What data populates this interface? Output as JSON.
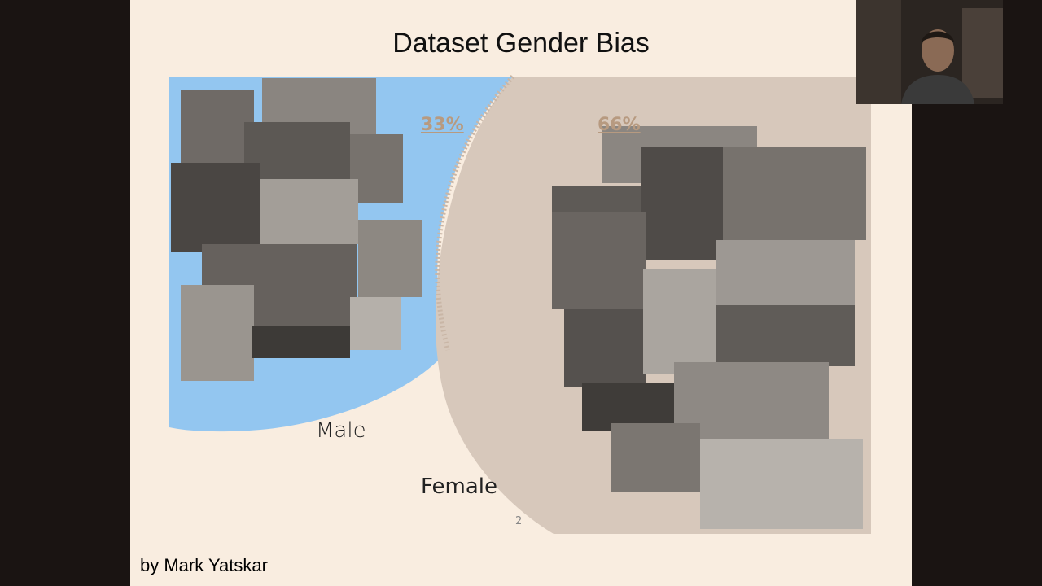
{
  "slide": {
    "title": "Dataset Gender Bias",
    "male_label": "Male",
    "female_label": "Female",
    "male_percent": "33%",
    "female_percent": "66%",
    "page_number": "2",
    "credit": "by Mark Yatskar"
  },
  "colors": {
    "background": "#1a1412",
    "slide_bg": "#f9ede0",
    "male_region": "#93c6f0",
    "female_region": "#d7c8bb",
    "percent_text": "#b79a80"
  },
  "images": {
    "male_collage": "photo collage of men cooking",
    "female_collage": "photo collage of women cooking",
    "webcam": "presenter webcam feed"
  }
}
